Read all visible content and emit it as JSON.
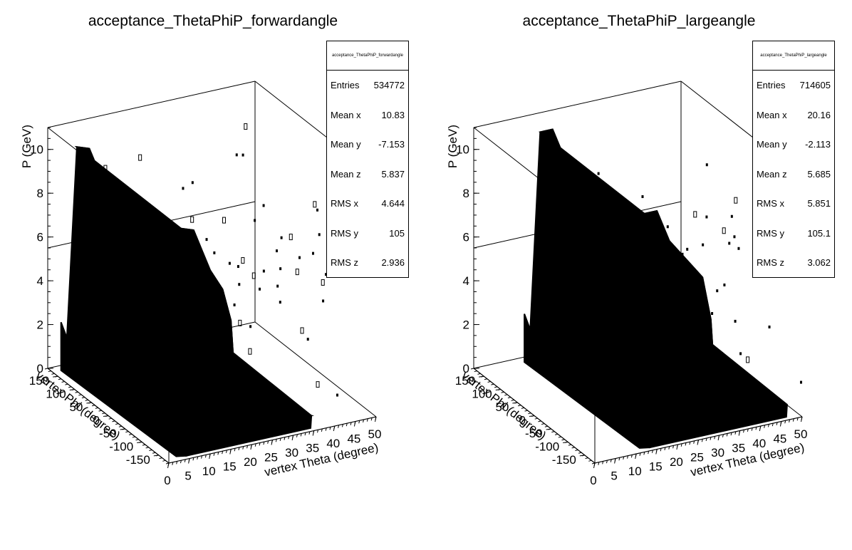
{
  "chart_data": [
    {
      "type": "scatter",
      "title": "acceptance_ThetaPhiP_forwardangle",
      "xlabel": "vertex Theta (degree)",
      "ylabel": "vertex Phi (degree)",
      "zlabel": "P (GeV)",
      "xlim": [
        0,
        50
      ],
      "ylim": [
        -180,
        180
      ],
      "zlim": [
        0,
        11
      ],
      "x_ticks": [
        "0",
        "5",
        "10",
        "15",
        "20",
        "25",
        "30",
        "35",
        "40",
        "45",
        "50"
      ],
      "y_ticks": [
        "-150",
        "-100",
        "-50",
        "0",
        "50",
        "100",
        "150"
      ],
      "z_ticks": [
        "0",
        "2",
        "4",
        "6",
        "8",
        "10"
      ],
      "stats": {
        "header": "acceptance_ThetaPhiP_forwardangle",
        "rows": [
          {
            "label": "Entries",
            "value": "534772"
          },
          {
            "label": "Mean x",
            "value": "10.83"
          },
          {
            "label": "Mean y",
            "value": "-7.153"
          },
          {
            "label": "Mean z",
            "value": "5.837"
          },
          {
            "label": "RMS x",
            "value": "4.644"
          },
          {
            "label": "RMS y",
            "value": "105"
          },
          {
            "label": "RMS z",
            "value": "2.936"
          }
        ]
      },
      "ridge_profile": [
        {
          "theta": 5,
          "p_max": 10.2
        },
        {
          "theta": 8,
          "p_max": 10.0
        },
        {
          "theta": 10,
          "p_max": 9.0
        },
        {
          "theta": 12,
          "p_max": 8.0
        },
        {
          "theta": 15,
          "p_max": 7.0
        },
        {
          "theta": 17,
          "p_max": 5.5
        },
        {
          "theta": 18,
          "p_max": 2.5
        },
        {
          "theta": 21,
          "p_max": 1.2
        },
        {
          "theta": 26,
          "p_max": 0.8
        },
        {
          "theta": 33,
          "p_max": 0.6
        }
      ]
    },
    {
      "type": "scatter",
      "title": "acceptance_ThetaPhiP_largeangle",
      "xlabel": "vertex Theta (degree)",
      "ylabel": "vertex Phi (degree)",
      "zlabel": "P (GeV)",
      "xlim": [
        0,
        50
      ],
      "ylim": [
        -180,
        180
      ],
      "zlim": [
        0,
        11
      ],
      "x_ticks": [
        "0",
        "5",
        "10",
        "15",
        "20",
        "25",
        "30",
        "35",
        "40",
        "45",
        "50"
      ],
      "y_ticks": [
        "-150",
        "-100",
        "-50",
        "0",
        "50",
        "100",
        "150"
      ],
      "z_ticks": [
        "0",
        "2",
        "4",
        "6",
        "8",
        "10"
      ],
      "stats": {
        "header": "acceptance_ThetaPhiP_largeangle",
        "rows": [
          {
            "label": "Entries",
            "value": "714605"
          },
          {
            "label": "Mean x",
            "value": "20.16"
          },
          {
            "label": "Mean y",
            "value": "-2.113"
          },
          {
            "label": "Mean z",
            "value": "5.685"
          },
          {
            "label": "RMS x",
            "value": "5.851"
          },
          {
            "label": "RMS y",
            "value": "105.1"
          },
          {
            "label": "RMS z",
            "value": "3.062"
          }
        ]
      },
      "ridge_profile": [
        {
          "theta": 14,
          "p_max": 10.5
        },
        {
          "theta": 17,
          "p_max": 10.5
        },
        {
          "theta": 20,
          "p_max": 9.0
        },
        {
          "theta": 24,
          "p_max": 8.0
        },
        {
          "theta": 28,
          "p_max": 7.0
        },
        {
          "theta": 30,
          "p_max": 5.0
        },
        {
          "theta": 31,
          "p_max": 2.0
        },
        {
          "theta": 35,
          "p_max": 1.0
        },
        {
          "theta": 42,
          "p_max": 0.8
        },
        {
          "theta": 45,
          "p_max": 0.5
        }
      ]
    }
  ]
}
